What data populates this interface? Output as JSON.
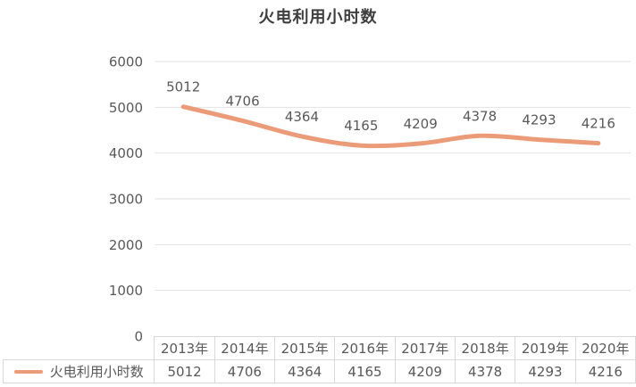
{
  "chart_data": {
    "type": "line",
    "title": "火电利用小时数",
    "categories": [
      "2013年",
      "2014年",
      "2015年",
      "2016年",
      "2017年",
      "2018年",
      "2019年",
      "2020年"
    ],
    "series": [
      {
        "name": "火电利用小时数",
        "values": [
          5012,
          4706,
          4364,
          4165,
          4209,
          4378,
          4293,
          4216
        ],
        "color": "#EB9B78"
      }
    ],
    "xlabel": "",
    "ylabel": "",
    "ylim": [
      0,
      6000
    ],
    "y_ticks": [
      0,
      1000,
      2000,
      3000,
      4000,
      5000,
      6000
    ],
    "grid": true,
    "data_labels": true,
    "legend_position": "bottom-table"
  },
  "colors": {
    "line": "#EB9B78",
    "grid": "#E2E2E2",
    "axis_text": "#595959",
    "data_label_text": "#595959",
    "title_text": "#3F3F3F",
    "table_border": "#D9D9D9",
    "table_text": "#595959",
    "background": "#FFFFFF"
  }
}
